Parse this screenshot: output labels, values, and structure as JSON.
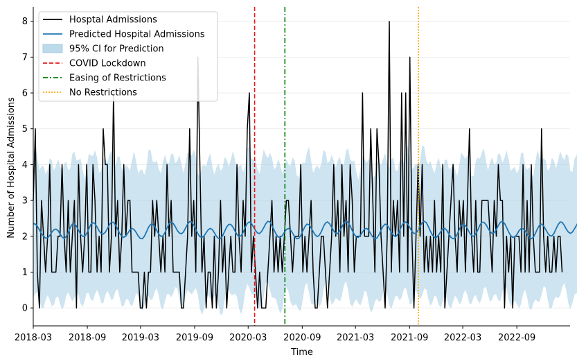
{
  "chart_data": {
    "type": "line",
    "title": "",
    "xlabel": "Time",
    "ylabel": "Number of Hospital Admissions",
    "xlim": [
      "2018-03-01",
      "2023-03-01"
    ],
    "ylim": [
      -0.5,
      8.4
    ],
    "x_ticks": [
      "2018-03",
      "2018-09",
      "2019-03",
      "2019-09",
      "2020-03",
      "2020-09",
      "2021-03",
      "2021-09",
      "2022-03",
      "2022-09"
    ],
    "y_ticks": [
      0,
      1,
      2,
      3,
      4,
      5,
      6,
      7,
      8
    ],
    "grid": "horizontal",
    "legend_position": "top-left",
    "colors": {
      "actual": "#000000",
      "predicted": "#1f77b4",
      "ci_fill": "#a6cde3",
      "lockdown": "#e41a1c",
      "easing": "#008000",
      "no_restrictions": "#ffa500"
    },
    "legend": [
      {
        "label": "Hosptal Admissions",
        "style": "actual"
      },
      {
        "label": "Predicted Hospital Admissions",
        "style": "predicted"
      },
      {
        "label": "95% CI for Prediction",
        "style": "ci"
      },
      {
        "label": "COVID Lockdown",
        "style": "lockdown"
      },
      {
        "label": "Easing of Restrictions",
        "style": "easing"
      },
      {
        "label": "No Restrictions",
        "style": "no_restrictions"
      }
    ],
    "events": [
      {
        "name": "COVID Lockdown",
        "date": "2020-03-23",
        "style": "dashed"
      },
      {
        "name": "Easing of Restrictions",
        "date": "2020-07-04",
        "style": "dashdot"
      },
      {
        "name": "No Restrictions",
        "date": "2021-10-01",
        "style": "dotted"
      }
    ],
    "series": [
      {
        "name": "Hosptal Admissions",
        "kind": "actual",
        "start": "2018-03-01",
        "interval_days": 7,
        "values": [
          3,
          5,
          1,
          0,
          3,
          2,
          1,
          2,
          4,
          1,
          1,
          1,
          2,
          2,
          4,
          2,
          1,
          3,
          1,
          2,
          3,
          0,
          4,
          2,
          1,
          2,
          4,
          1,
          1,
          4,
          3,
          1,
          2,
          1,
          5,
          4,
          4,
          1,
          2,
          6,
          2,
          3,
          1,
          2,
          4,
          2,
          3,
          3,
          1,
          1,
          1,
          1,
          0,
          0,
          1,
          0,
          1,
          1,
          3,
          2,
          3,
          2,
          1,
          2,
          1,
          4,
          2,
          3,
          1,
          1,
          1,
          1,
          0,
          0,
          1,
          2,
          5,
          2,
          3,
          1,
          7,
          4,
          1,
          2,
          0,
          1,
          1,
          0,
          2,
          0,
          1,
          3,
          1,
          2,
          0,
          1,
          2,
          1,
          1,
          4,
          2,
          1,
          3,
          2,
          5,
          6,
          1,
          2,
          1,
          0,
          1,
          0,
          0,
          0,
          1,
          2,
          3,
          1,
          2,
          1,
          2,
          1,
          2,
          3,
          3,
          2,
          1,
          2,
          2,
          2,
          4,
          1,
          2,
          1,
          2,
          3,
          1,
          0,
          0,
          1,
          2,
          2,
          1,
          0,
          1,
          2,
          4,
          2,
          3,
          1,
          4,
          2,
          3,
          1,
          4,
          3,
          1,
          2,
          2,
          2,
          6,
          2,
          2,
          2,
          5,
          3,
          1,
          5,
          4,
          2,
          1,
          0,
          2,
          8,
          1,
          3,
          2,
          3,
          1,
          6,
          2,
          6,
          1,
          7,
          2,
          0,
          2,
          4,
          2,
          4,
          1,
          2,
          1,
          2,
          1,
          3,
          1,
          2,
          1,
          4,
          0,
          1,
          2,
          3,
          4,
          2,
          1,
          3,
          2,
          3,
          1,
          3,
          5,
          2,
          1,
          3,
          1,
          1,
          3,
          3,
          3,
          3,
          2,
          1,
          3,
          2,
          4,
          3,
          3,
          0,
          2,
          1,
          2,
          0,
          2,
          2,
          2,
          1,
          4,
          1,
          3,
          1,
          4,
          2,
          1,
          1,
          1,
          5,
          2,
          1,
          2,
          1,
          1,
          2,
          1,
          2,
          2,
          1
        ]
      },
      {
        "name": "Predicted Hospital Admissions",
        "kind": "predicted",
        "start": "2018-03-01",
        "interval_days": 7,
        "values": [
          2.35,
          2.34,
          2.28,
          2.18,
          2.08,
          2.0,
          1.95,
          1.96,
          2.02,
          2.11,
          2.18,
          2.2,
          2.16,
          2.07,
          1.98,
          1.94,
          1.99,
          2.11,
          2.25,
          2.34,
          2.35,
          2.28,
          2.17,
          2.06,
          2.0,
          2.0,
          2.08,
          2.21,
          2.33,
          2.38,
          2.35,
          2.26,
          2.15,
          2.08,
          2.06,
          2.11,
          2.21,
          2.32,
          2.39,
          2.39,
          2.31,
          2.2,
          2.08,
          2.0,
          1.97,
          2.01,
          2.09,
          2.18,
          2.22,
          2.19,
          2.11,
          2.01,
          1.94,
          1.93,
          2.0,
          2.12,
          2.25,
          2.33,
          2.34,
          2.27,
          2.16,
          2.06,
          2.0,
          2.01,
          2.1,
          2.23,
          2.35,
          2.39,
          2.36,
          2.27,
          2.16,
          2.09,
          2.07,
          2.12,
          2.23,
          2.34,
          2.41,
          2.4,
          2.31,
          2.19,
          2.07,
          1.99,
          1.97,
          2.01,
          2.1,
          2.18,
          2.22,
          2.19,
          2.1,
          2.0,
          1.94,
          1.94,
          2.01,
          2.14,
          2.26,
          2.33,
          2.33,
          2.26,
          2.15,
          2.05,
          1.99,
          2.02,
          2.11,
          2.25,
          2.36,
          2.4,
          2.36,
          2.26,
          2.16,
          2.09,
          2.08,
          2.14,
          2.24,
          2.35,
          2.42,
          2.4,
          2.3,
          2.18,
          2.06,
          1.98,
          1.97,
          2.02,
          2.11,
          2.19,
          2.22,
          2.18,
          2.09,
          1.99,
          1.93,
          1.94,
          2.02,
          2.15,
          2.27,
          2.34,
          2.32,
          2.24,
          2.13,
          2.04,
          1.99,
          2.03,
          2.13,
          2.27,
          2.37,
          2.4,
          2.35,
          2.25,
          2.15,
          2.08,
          2.08,
          2.15,
          2.26,
          2.37,
          2.42,
          2.39,
          2.29,
          2.16,
          2.05,
          1.98,
          1.97,
          2.03,
          2.12,
          2.2,
          2.22,
          2.17,
          2.07,
          1.98,
          1.93,
          1.95,
          2.04,
          2.17,
          2.28,
          2.34,
          2.31,
          2.22,
          2.11,
          2.03,
          1.99,
          2.04,
          2.15,
          2.29,
          2.38,
          2.4,
          2.34,
          2.24,
          2.14,
          2.08,
          2.09,
          2.17,
          2.28,
          2.38,
          2.42,
          2.38,
          2.27,
          2.14,
          2.03,
          1.97,
          1.97,
          2.04,
          2.13,
          2.21,
          2.22,
          2.16,
          2.06,
          1.97,
          1.93,
          1.96,
          2.06,
          2.19,
          2.3,
          2.34,
          2.3,
          2.21,
          2.1,
          2.02,
          2.0,
          2.06,
          2.17,
          2.31,
          2.39,
          2.39,
          2.33,
          2.22,
          2.13,
          2.08,
          2.1,
          2.19,
          2.3,
          2.39,
          2.42,
          2.36,
          2.25,
          2.12,
          2.02,
          1.97,
          1.98,
          2.05,
          2.15,
          2.21,
          2.21,
          2.15,
          2.05,
          1.96,
          1.93,
          1.97,
          2.08,
          2.21,
          2.31,
          2.34,
          2.29,
          2.19,
          2.09,
          2.02,
          2.01,
          2.08,
          2.2,
          2.32,
          2.4,
          2.39,
          2.31,
          2.2,
          2.12,
          2.08,
          2.12,
          2.21,
          2.31,
          2.4
        ]
      }
    ],
    "ci_half_width": 1.9
  }
}
